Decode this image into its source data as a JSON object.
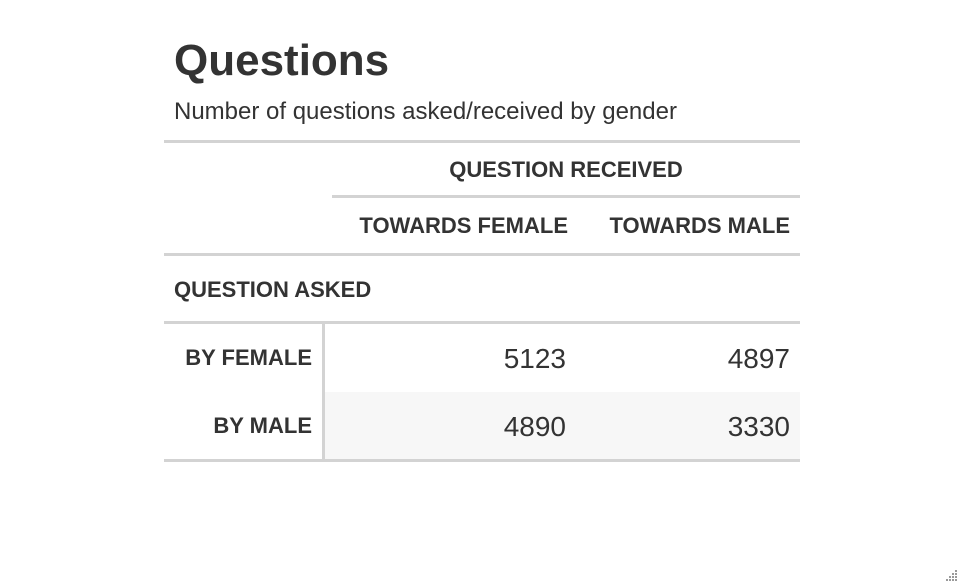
{
  "title": "Questions",
  "subtitle": "Number of questions asked/received by gender",
  "chart_data": {
    "type": "table",
    "column_spanner": "QUESTION RECEIVED",
    "columns": [
      "TOWARDS FEMALE",
      "TOWARDS MALE"
    ],
    "row_group_label": "QUESTION ASKED",
    "rows": [
      {
        "label": "BY FEMALE",
        "values": [
          5123,
          4897
        ]
      },
      {
        "label": "BY MALE",
        "values": [
          4890,
          3330
        ]
      }
    ]
  }
}
